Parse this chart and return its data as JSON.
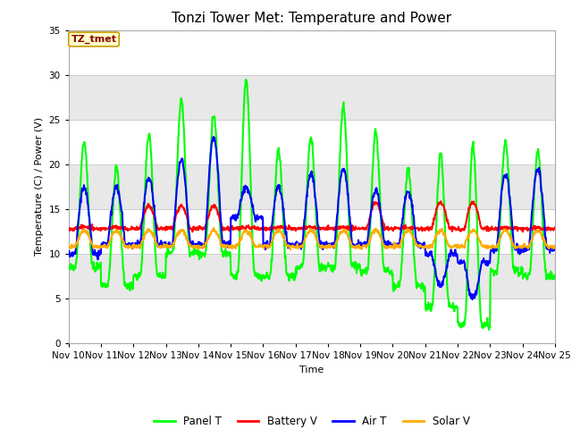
{
  "title": "Tonzi Tower Met: Temperature and Power",
  "xlabel": "Time",
  "ylabel": "Temperature (C) / Power (V)",
  "ylim": [
    0,
    35
  ],
  "yticks": [
    0,
    5,
    10,
    15,
    20,
    25,
    30,
    35
  ],
  "x_labels": [
    "Nov 10",
    "Nov 11",
    "Nov 12",
    "Nov 13",
    "Nov 14",
    "Nov 15",
    "Nov 16",
    "Nov 17",
    "Nov 18",
    "Nov 19",
    "Nov 20",
    "Nov 21",
    "Nov 22",
    "Nov 23",
    "Nov 24",
    "Nov 25"
  ],
  "legend_labels": [
    "Panel T",
    "Battery V",
    "Air T",
    "Solar V"
  ],
  "legend_colors": [
    "#00ff00",
    "#ff0000",
    "#0000ff",
    "#ffaa00"
  ],
  "annotation_text": "TZ_tmet",
  "annotation_color": "#880000",
  "annotation_bg": "#ffffcc",
  "annotation_border": "#cc9900",
  "band_colors": [
    "#ffffff",
    "#e8e8e8"
  ],
  "fig_bg": "#ffffff",
  "title_fontsize": 11,
  "label_fontsize": 8,
  "tick_fontsize": 7.5
}
